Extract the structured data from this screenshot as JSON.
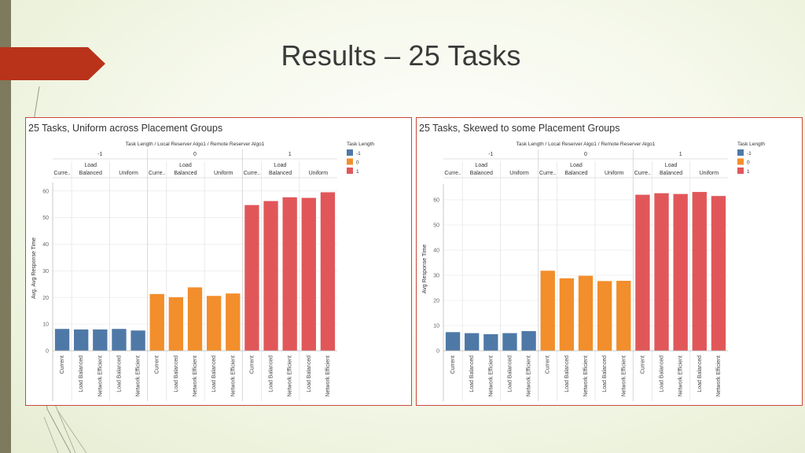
{
  "slide": {
    "title": "Results – 25 Tasks"
  },
  "colors": {
    "-1": "#4e79a7",
    "0": "#f28e2b",
    "1": "#e15759"
  },
  "chart_data": [
    {
      "type": "bar",
      "title": "25 Tasks, Uniform across Placement Groups",
      "header_title": "Task Length  /  Local Reserver Algo1  /  Remote Reserver Algo1",
      "ylabel": "Avg. Avg Response Time",
      "ylim": [
        0,
        62
      ],
      "yticks": [
        0,
        10,
        20,
        30,
        40,
        50,
        60
      ],
      "legend": {
        "title": "Task Length",
        "position": "right",
        "items": [
          "-1",
          "0",
          "1"
        ]
      },
      "groups": [
        {
          "task_length": "-1",
          "local": [
            {
              "label": "Curre..",
              "remote": [
                {
                  "name": "Current",
                  "value": 8.2
                }
              ]
            },
            {
              "label": "Load Balanced",
              "remote": [
                {
                  "name": "Load Balanced",
                  "value": 8.0
                },
                {
                  "name": "Network Efficient",
                  "value": 8.0
                }
              ]
            },
            {
              "label": "Uniform",
              "remote": [
                {
                  "name": "Load Balanced",
                  "value": 8.2
                },
                {
                  "name": "Network Efficient",
                  "value": 7.6
                }
              ]
            }
          ]
        },
        {
          "task_length": "0",
          "local": [
            {
              "label": "Curre..",
              "remote": [
                {
                  "name": "Current",
                  "value": 21.3
                }
              ]
            },
            {
              "label": "Load Balanced",
              "remote": [
                {
                  "name": "Load Balanced",
                  "value": 20.1
                },
                {
                  "name": "Network Efficient",
                  "value": 23.8
                }
              ]
            },
            {
              "label": "Uniform",
              "remote": [
                {
                  "name": "Load Balanced",
                  "value": 20.6
                },
                {
                  "name": "Network Efficient",
                  "value": 21.5
                }
              ]
            }
          ]
        },
        {
          "task_length": "1",
          "local": [
            {
              "label": "Curre..",
              "remote": [
                {
                  "name": "Current",
                  "value": 54.7
                }
              ]
            },
            {
              "label": "Load Balanced",
              "remote": [
                {
                  "name": "Load Balanced",
                  "value": 56.2
                },
                {
                  "name": "Network Efficient",
                  "value": 57.6
                }
              ]
            },
            {
              "label": "Uniform",
              "remote": [
                {
                  "name": "Load Balanced",
                  "value": 57.4
                },
                {
                  "name": "Network Efficient",
                  "value": 59.5
                }
              ]
            }
          ]
        }
      ]
    },
    {
      "type": "bar",
      "title": "25 Tasks, Skewed to some Placement Groups",
      "header_title": "Task Length  /  Local Reserver Algo1  /  Remote Reserver Algo1",
      "ylabel": "Avg Response Time",
      "ylim": [
        0,
        65
      ],
      "yticks": [
        0,
        10,
        20,
        30,
        40,
        50,
        60
      ],
      "legend": {
        "title": "Task Length",
        "position": "right",
        "items": [
          "-1",
          "0",
          "1"
        ]
      },
      "groups": [
        {
          "task_length": "-1",
          "local": [
            {
              "label": "Curre..",
              "remote": [
                {
                  "name": "Current",
                  "value": 7.4
                }
              ]
            },
            {
              "label": "Load Balanced",
              "remote": [
                {
                  "name": "Load Balanced",
                  "value": 7.0
                },
                {
                  "name": "Network Efficient",
                  "value": 6.6
                }
              ]
            },
            {
              "label": "Uniform",
              "remote": [
                {
                  "name": "Load Balanced",
                  "value": 7.0
                },
                {
                  "name": "Network Efficient",
                  "value": 7.8
                }
              ]
            }
          ]
        },
        {
          "task_length": "0",
          "local": [
            {
              "label": "Curre..",
              "remote": [
                {
                  "name": "Current",
                  "value": 31.8
                }
              ]
            },
            {
              "label": "Load Balanced",
              "remote": [
                {
                  "name": "Load Balanced",
                  "value": 28.8
                },
                {
                  "name": "Network Efficient",
                  "value": 29.8
                }
              ]
            },
            {
              "label": "Uniform",
              "remote": [
                {
                  "name": "Load Balanced",
                  "value": 27.7
                },
                {
                  "name": "Network Efficient",
                  "value": 27.8
                }
              ]
            }
          ]
        },
        {
          "task_length": "1",
          "local": [
            {
              "label": "Curre..",
              "remote": [
                {
                  "name": "Current",
                  "value": 62.0
                }
              ]
            },
            {
              "label": "Load Balanced",
              "remote": [
                {
                  "name": "Load Balanced",
                  "value": 62.6
                },
                {
                  "name": "Network Efficient",
                  "value": 62.3
                }
              ]
            },
            {
              "label": "Uniform",
              "remote": [
                {
                  "name": "Load Balanced",
                  "value": 63.1
                },
                {
                  "name": "Network Efficient",
                  "value": 61.5
                }
              ]
            }
          ]
        }
      ]
    }
  ]
}
